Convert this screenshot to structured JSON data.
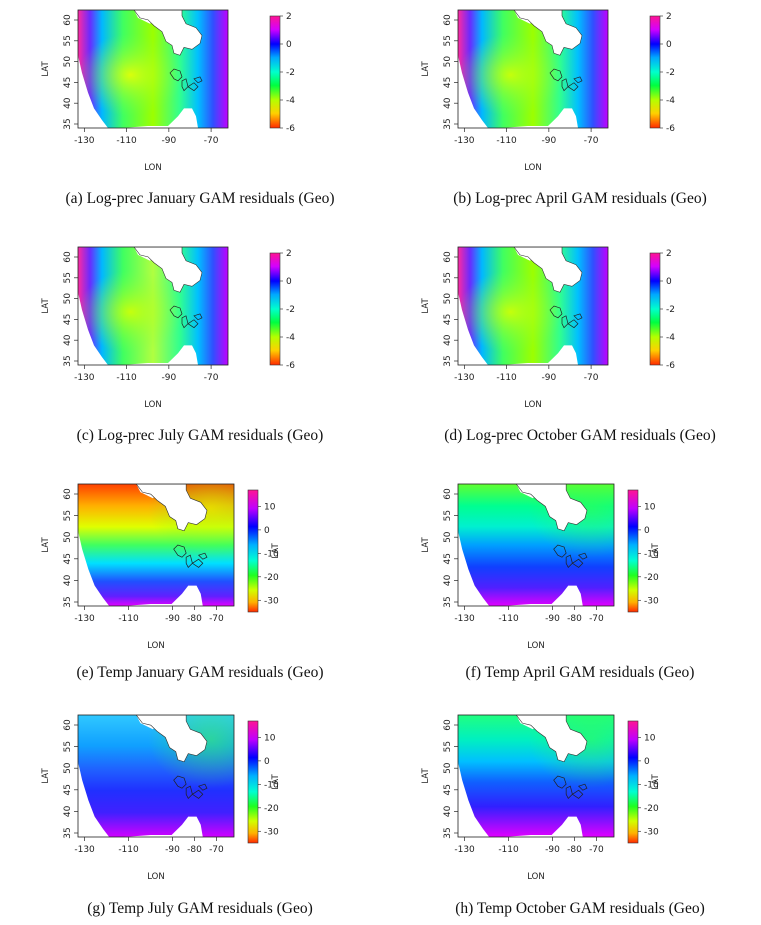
{
  "axis": {
    "x_title": "LON",
    "y_title": "LAT"
  },
  "panels": [
    {
      "caption": "(a) Log-prec January GAM residuals (Geo)",
      "kind": "prec",
      "variant": "jan",
      "x_ticks": [
        "-130",
        "-110",
        "-90",
        "-70"
      ],
      "y_ticks": [
        "35",
        "40",
        "45",
        "50",
        "55",
        "60"
      ],
      "scale_ticks": [
        "2",
        "0",
        "-2",
        "-4",
        "-6"
      ],
      "scale_range": [
        -6,
        2
      ]
    },
    {
      "caption": "(b) Log-prec April GAM residuals (Geo)",
      "kind": "prec",
      "variant": "apr",
      "x_ticks": [
        "-130",
        "-110",
        "-90",
        "-70"
      ],
      "y_ticks": [
        "35",
        "40",
        "45",
        "50",
        "55",
        "60"
      ],
      "scale_ticks": [
        "2",
        "0",
        "-2",
        "-4",
        "-6"
      ],
      "scale_range": [
        -6,
        2
      ]
    },
    {
      "caption": "(c) Log-prec July GAM residuals (Geo)",
      "kind": "prec",
      "variant": "jul",
      "x_ticks": [
        "-130",
        "-110",
        "-90",
        "-70"
      ],
      "y_ticks": [
        "35",
        "40",
        "45",
        "50",
        "55",
        "60"
      ],
      "scale_ticks": [
        "2",
        "0",
        "-2",
        "-4",
        "-6"
      ],
      "scale_range": [
        -6,
        2
      ]
    },
    {
      "caption": "(d) Log-prec October GAM residuals (Geo)",
      "kind": "prec",
      "variant": "oct",
      "x_ticks": [
        "-130",
        "-110",
        "-90",
        "-70"
      ],
      "y_ticks": [
        "35",
        "40",
        "45",
        "50",
        "55",
        "60"
      ],
      "scale_ticks": [
        "2",
        "0",
        "-2",
        "-4",
        "-6"
      ],
      "scale_range": [
        -6,
        2
      ]
    },
    {
      "caption": "(e) Temp January GAM residuals (Geo)",
      "kind": "temp",
      "variant": "jan",
      "x_ticks": [
        "-130",
        "-110",
        "-90",
        "-80",
        "-70"
      ],
      "y_ticks": [
        "35",
        "40",
        "45",
        "50",
        "55",
        "60"
      ],
      "scale_ticks": [
        "10",
        "0",
        "-10",
        "-20",
        "-30"
      ],
      "scale_range": [
        -35,
        17
      ],
      "scale_overlay": "LAT"
    },
    {
      "caption": "(f) Temp April GAM residuals (Geo)",
      "kind": "temp",
      "variant": "apr",
      "x_ticks": [
        "-130",
        "-110",
        "-90",
        "-80",
        "-70"
      ],
      "y_ticks": [
        "35",
        "40",
        "45",
        "50",
        "55",
        "60"
      ],
      "scale_ticks": [
        "10",
        "0",
        "-10",
        "-20",
        "-30"
      ],
      "scale_range": [
        -35,
        17
      ],
      "scale_overlay": "LAT"
    },
    {
      "caption": "(g) Temp July GAM residuals (Geo)",
      "kind": "temp",
      "variant": "jul",
      "x_ticks": [
        "-130",
        "-110",
        "-90",
        "-80",
        "-70"
      ],
      "y_ticks": [
        "35",
        "40",
        "45",
        "50",
        "55",
        "60"
      ],
      "scale_ticks": [
        "10",
        "0",
        "-10",
        "-20",
        "-30"
      ],
      "scale_range": [
        -35,
        17
      ],
      "scale_overlay": "LAT"
    },
    {
      "caption": "(h) Temp October GAM residuals (Geo)",
      "kind": "temp",
      "variant": "oct",
      "x_ticks": [
        "-130",
        "-110",
        "-90",
        "-80",
        "-70"
      ],
      "y_ticks": [
        "35",
        "40",
        "45",
        "50",
        "55",
        "60"
      ],
      "scale_ticks": [
        "10",
        "0",
        "-10",
        "-20",
        "-30"
      ],
      "scale_range": [
        -35,
        17
      ],
      "scale_overlay": "LAT"
    }
  ]
}
